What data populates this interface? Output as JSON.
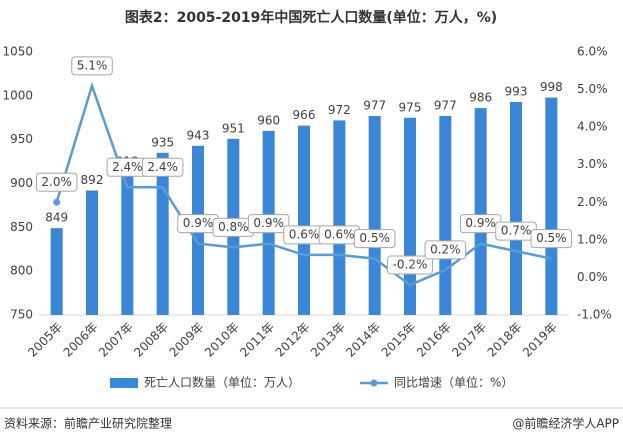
{
  "chart_data": {
    "type": "bar-line",
    "title": "图表2：2005-2019年中国死亡人口数量(单位：万人，%)",
    "categories": [
      "2005年",
      "2006年",
      "2007年",
      "2008年",
      "2009年",
      "2010年",
      "2011年",
      "2012年",
      "2013年",
      "2014年",
      "2015年",
      "2016年",
      "2017年",
      "2018年",
      "2019年"
    ],
    "series": [
      {
        "name": "死亡人口数量（单位：万人）",
        "type": "bar",
        "color": "#3a87d9",
        "values": [
          849,
          892,
          913,
          935,
          943,
          951,
          960,
          966,
          972,
          977,
          975,
          977,
          986,
          993,
          998
        ]
      },
      {
        "name": "同比增速（单位：%）",
        "type": "line",
        "axis": "y2",
        "color": "#5b9bd5",
        "values": [
          2.0,
          5.1,
          2.4,
          2.4,
          0.9,
          0.8,
          0.9,
          0.6,
          0.6,
          0.5,
          -0.2,
          0.2,
          0.9,
          0.7,
          0.5
        ],
        "value_labels": [
          "2.0%",
          "5.1%",
          "2.4%",
          "2.4%",
          "0.9%",
          "0.8%",
          "0.9%",
          "0.6%",
          "0.6%",
          "0.5%",
          "-0.2%",
          "0.2%",
          "0.9%",
          "0.7%",
          "0.5%"
        ]
      }
    ],
    "ylim": [
      750,
      1050
    ],
    "yticks": [
      750,
      800,
      850,
      900,
      950,
      1000,
      1050
    ],
    "y2lim": [
      -1,
      6
    ],
    "y2ticks": [
      {
        "value": -1,
        "label": "-1.0%"
      },
      {
        "value": 0,
        "label": "0.0%"
      },
      {
        "value": 1,
        "label": "1.0%"
      },
      {
        "value": 2,
        "label": "2.0%"
      },
      {
        "value": 3,
        "label": "3.0%"
      },
      {
        "value": 4,
        "label": "4.0%"
      },
      {
        "value": 5,
        "label": "5.0%"
      },
      {
        "value": 6,
        "label": "6.0%"
      }
    ],
    "source": "资料来源：前瞻产业研究院整理",
    "credit": "@前瞻经济学人APP"
  }
}
